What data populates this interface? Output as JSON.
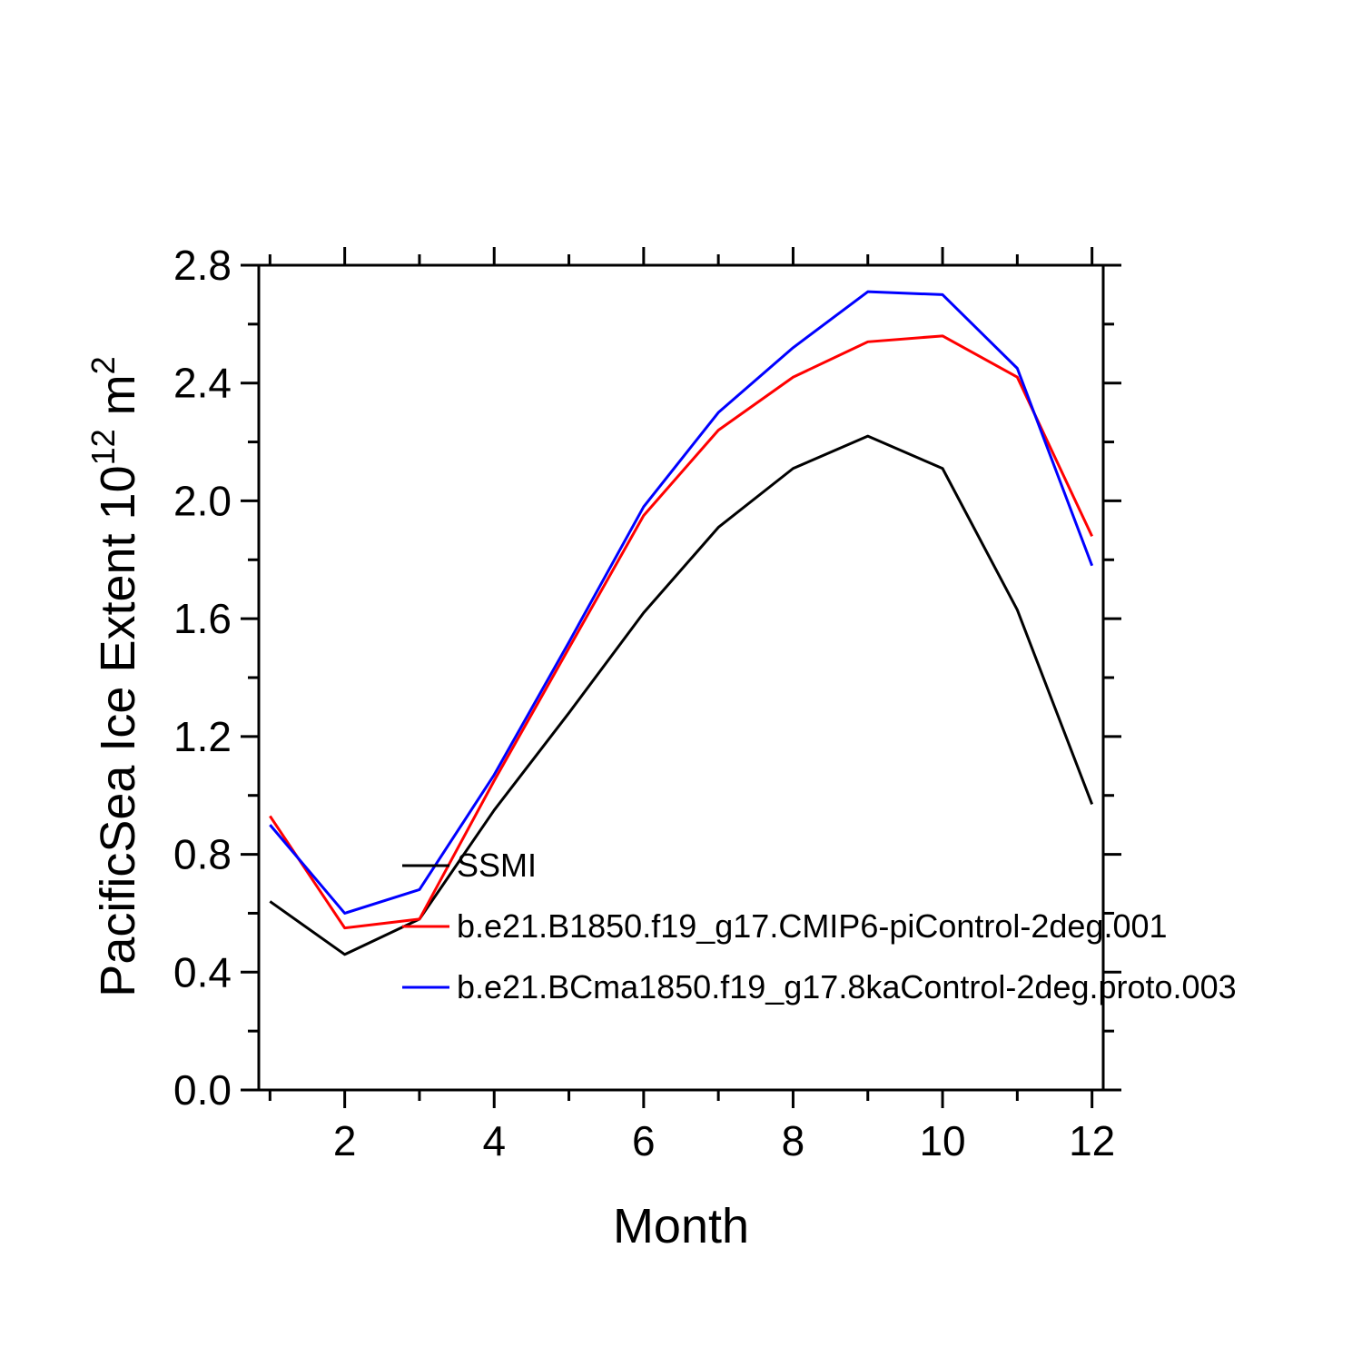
{
  "chart_data": {
    "type": "line",
    "title": "",
    "xlabel": "Month",
    "ylabel": {
      "prefix": "PacificSea Ice Extent 10",
      "exp1": "12",
      "mid": " m",
      "exp2": "2"
    },
    "x": [
      1,
      2,
      3,
      4,
      5,
      6,
      7,
      8,
      9,
      10,
      11,
      12
    ],
    "xlim": [
      0.85,
      12.15
    ],
    "ylim": [
      0.0,
      2.8
    ],
    "x_major_ticks": [
      2,
      4,
      6,
      8,
      10,
      12
    ],
    "x_minor_ticks": [
      1,
      3,
      5,
      7,
      9,
      11
    ],
    "x_tick_labels": [
      "2",
      "4",
      "6",
      "8",
      "10",
      "12"
    ],
    "y_major_ticks": [
      0.0,
      0.4,
      0.8,
      1.2,
      1.6,
      2.0,
      2.4,
      2.8
    ],
    "y_minor_ticks": [
      0.2,
      0.6,
      1.0,
      1.4,
      1.8,
      2.2,
      2.6
    ],
    "y_tick_labels": [
      "0.0",
      "0.4",
      "0.8",
      "1.2",
      "1.6",
      "2.0",
      "2.4",
      "2.8"
    ],
    "grid": false,
    "legend_position": "inside-lower-left",
    "series": [
      {
        "name": "SSMI",
        "color": "#000000",
        "values": [
          0.64,
          0.46,
          0.58,
          0.95,
          1.28,
          1.62,
          1.91,
          2.11,
          2.22,
          2.11,
          1.63,
          0.97
        ]
      },
      {
        "name": "b.e21.B1850.f19_g17.CMIP6-piControl-2deg.001",
        "color": "#ff0000",
        "values": [
          0.93,
          0.55,
          0.58,
          1.05,
          1.5,
          1.95,
          2.24,
          2.42,
          2.54,
          2.56,
          2.42,
          1.88
        ]
      },
      {
        "name": "b.e21.BCma1850.f19_g17.8kaControl-2deg.proto.003",
        "color": "#0000ff",
        "values": [
          0.9,
          0.6,
          0.68,
          1.07,
          1.52,
          1.98,
          2.3,
          2.52,
          2.71,
          2.7,
          2.45,
          1.78
        ]
      }
    ]
  }
}
